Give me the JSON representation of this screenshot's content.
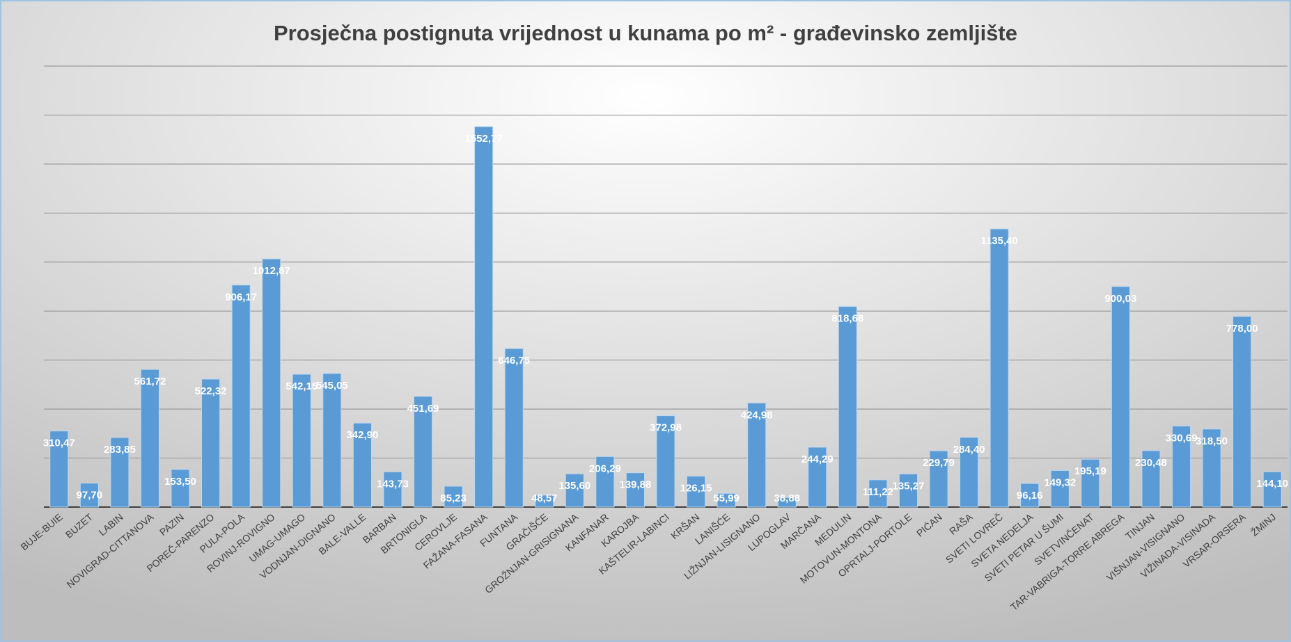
{
  "chart_data": {
    "type": "bar",
    "title": "Prosječna postignuta vrijednost u kunama po m² - građevinsko zemljište",
    "categories": [
      "BUJE-BUIE",
      "BUZET",
      "LABIN",
      "NOVIGRAD-CITTANOVA",
      "PAZIN",
      "POREČ-PARENZO",
      "PULA-POLA",
      "ROVINJ-ROVIGNO",
      "UMAG-UMAGO",
      "VODNJAN-DIGNANO",
      "BALE-VALLE",
      "BARBAN",
      "BRTONIGLA",
      "CEROVLJE",
      "FAŽANA-FASANA",
      "FUNTANA",
      "GRAČIŠĆE",
      "GROŽNJAN-GRISIGNANA",
      "KANFANAR",
      "KAROJBA",
      "KAŠTELIR-LABINCI",
      "KRŠAN",
      "LANIŠĆE",
      "LIŽNJAN-LISIGNANO",
      "LUPOGLAV",
      "MARČANA",
      "MEDULIN",
      "MOTOVUN-MONTONA",
      "OPRTALJ-PORTOLE",
      "PIĆAN",
      "RAŠA",
      "SVETI LOVREČ",
      "SVETA NEDELJA",
      "SVETI PETAR U ŠUMI",
      "SVETVINČENAT",
      "TAR-VABRIGA-TORRE ABREGA",
      "TINJAN",
      "VIŠNJAN-VISIGNANO",
      "VIŽINADA-VISINADA",
      "VRSAR-ORSERA",
      "ŽMINJ"
    ],
    "values": [
      310.47,
      97.7,
      283.85,
      561.72,
      153.5,
      522.32,
      906.17,
      1012.87,
      542.15,
      545.05,
      342.9,
      143.73,
      451.69,
      85.23,
      1552.77,
      646.75,
      48.57,
      135.6,
      206.29,
      139.88,
      372.98,
      126.15,
      55.99,
      424.98,
      38.88,
      244.29,
      818.68,
      111.22,
      135.27,
      229.79,
      284.4,
      1135.4,
      96.16,
      149.32,
      195.19,
      900.03,
      230.48,
      330.69,
      318.5,
      778.0,
      144.1
    ],
    "value_labels": [
      "310,47",
      "97,70",
      "283,85",
      "561,72",
      "153,50",
      "522,32",
      "906,17",
      "1012,87",
      "542,15",
      "545,05",
      "342,90",
      "143,73",
      "451,69",
      "85,23",
      "1552,77",
      "646,75",
      "48,57",
      "135,60",
      "206,29",
      "139,88",
      "372,98",
      "126,15",
      "55,99",
      "424,98",
      "38,88",
      "244,29",
      "818,68",
      "111,22",
      "135,27",
      "229,79",
      "284,40",
      "1135,40",
      "96,16",
      "149,32",
      "195,19",
      "900,03",
      "230,48",
      "330,69",
      "318,50",
      "778,00",
      "144,10"
    ],
    "color": "#5b9bd5",
    "ylim": [
      0,
      1800
    ],
    "yticks": [
      0,
      200,
      400,
      600,
      800,
      1000,
      1200,
      1400,
      1600,
      1800
    ],
    "grid": true
  }
}
